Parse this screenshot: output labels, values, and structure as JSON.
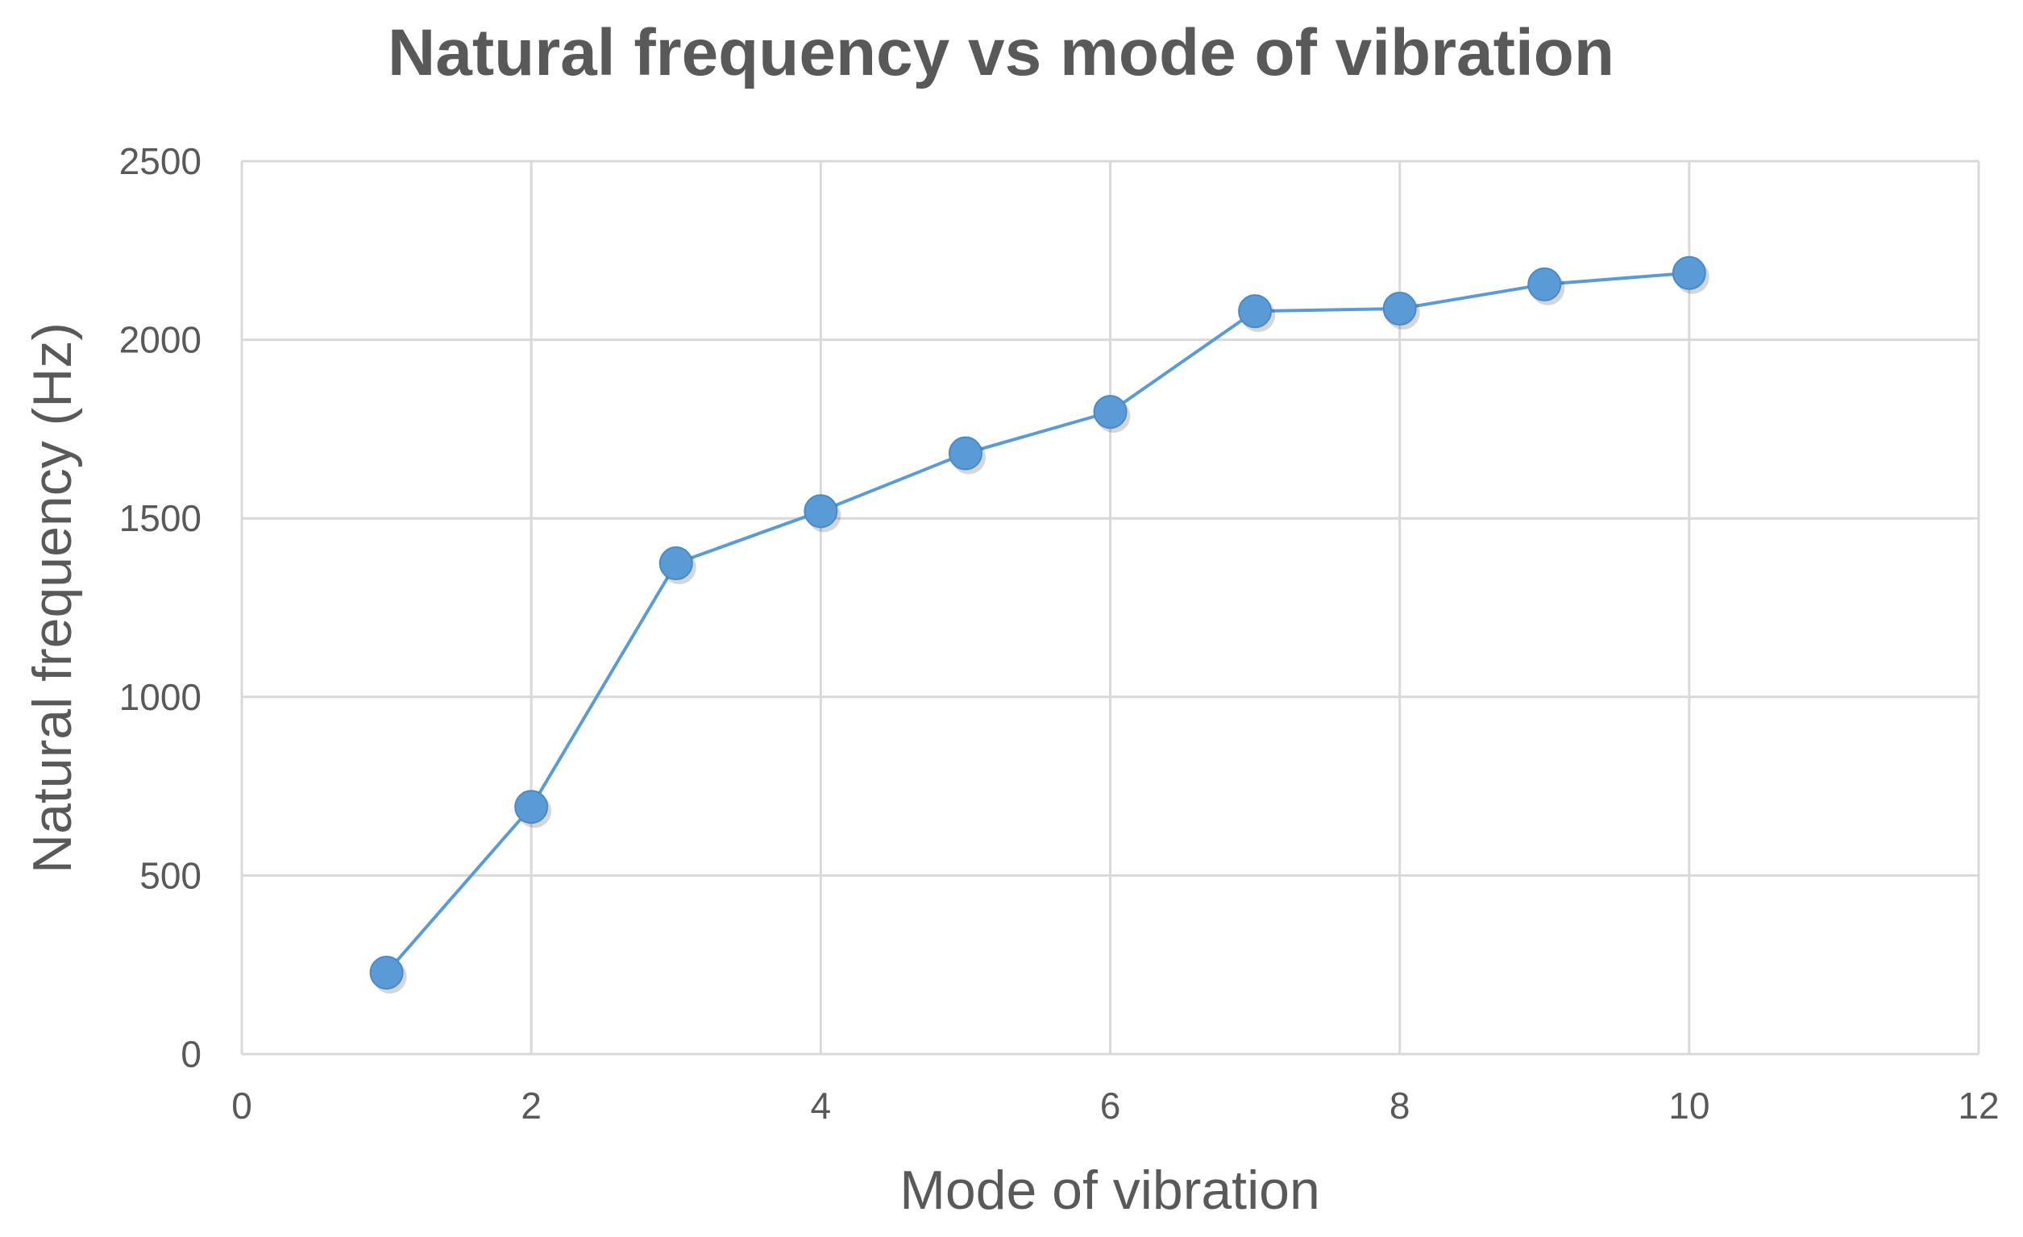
{
  "chart_data": {
    "type": "scatter",
    "title": "Natural frequency vs mode of vibration",
    "xlabel": "Mode of vibration",
    "ylabel": "Natural frequency  (Hz)",
    "xlim": [
      0,
      12
    ],
    "ylim": [
      0,
      2500
    ],
    "xticks": [
      0,
      2,
      4,
      6,
      8,
      10,
      12
    ],
    "yticks": [
      0,
      500,
      1000,
      1500,
      2000,
      2500
    ],
    "grid": true,
    "legend": "none",
    "series": [
      {
        "name": "Natural frequency",
        "color": "#5b9bd5",
        "x": [
          1,
          2,
          3,
          4,
          5,
          6,
          7,
          8,
          9,
          10
        ],
        "y": [
          228,
          692,
          1374,
          1520,
          1682,
          1798,
          2080,
          2087,
          2155,
          2187
        ]
      }
    ]
  }
}
